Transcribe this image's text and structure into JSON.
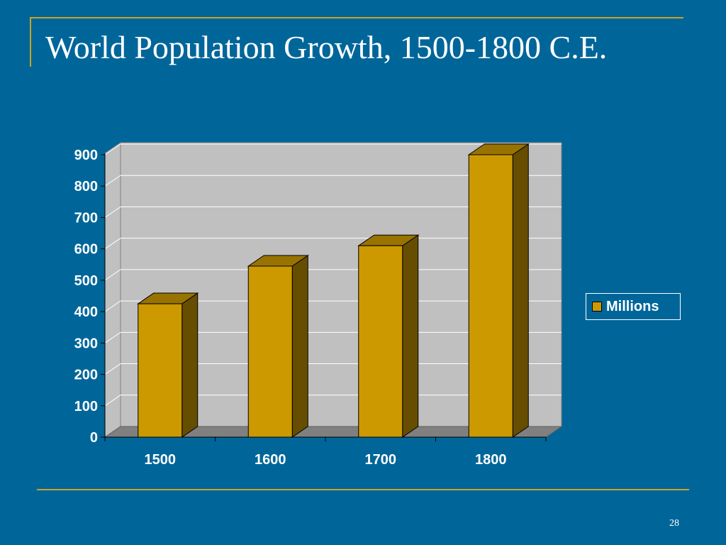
{
  "slide": {
    "title": "World Population Growth, 1500-1800 C.E.",
    "page_number": "28"
  },
  "colors": {
    "background": "#006699",
    "accent_rule": "#c9a227",
    "bar_front": "#cc9900",
    "bar_side": "#664d00",
    "bar_top": "#997300",
    "plot_wall": "#c0c0c0",
    "plot_floor": "#808080"
  },
  "chart_data": {
    "type": "bar",
    "style": "3d-column",
    "categories": [
      "1500",
      "1600",
      "1700",
      "1800"
    ],
    "series": [
      {
        "name": "Millions",
        "values": [
          425,
          545,
          610,
          900
        ]
      }
    ],
    "ylim": [
      0,
      900
    ],
    "yticks": [
      "0",
      "100",
      "200",
      "300",
      "400",
      "500",
      "600",
      "700",
      "800",
      "900"
    ],
    "grid": true,
    "legend": "right"
  }
}
